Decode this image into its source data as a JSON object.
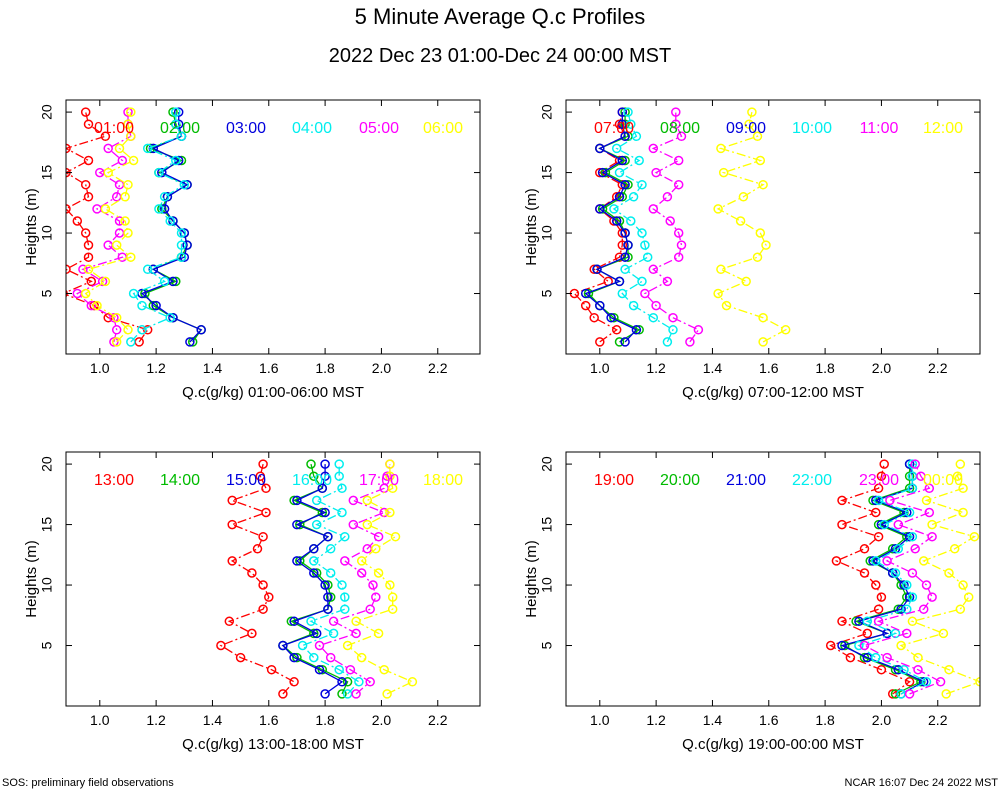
{
  "title": "5 Minute Average Q.c Profiles",
  "subtitle": "2022 Dec 23 01:00-Dec 24 00:00 MST",
  "footer": {
    "left": "SOS: preliminary field observations",
    "right": "NCAR 16:07 Dec 24 2022 MST"
  },
  "colors": {
    "red": "#ff0000",
    "green": "#00bb00",
    "blue": "#0000dd",
    "cyan": "#00eeee",
    "magenta": "#ff00ff",
    "yellow": "#ffff00",
    "darkblue": "#00008b"
  },
  "chart_data": [
    {
      "type": "line",
      "xlabel": "Q.c(g/kg) 01:00-06:00 MST",
      "ylabel": "Heights (m)",
      "xlim": [
        0.88,
        2.35
      ],
      "ylim": [
        0,
        21
      ],
      "xticks": [
        "1.0",
        "1.2",
        "1.4",
        "1.6",
        "1.8",
        "2.0",
        "2.2"
      ],
      "yticks": [
        "5",
        "10",
        "15",
        "20"
      ],
      "heights": [
        1,
        2,
        3,
        4,
        5,
        6,
        7,
        8,
        9,
        10,
        11,
        12,
        13,
        14,
        15,
        16,
        17,
        18,
        19,
        20
      ],
      "series": [
        {
          "name": "01:00",
          "color": "red",
          "values": [
            1.14,
            1.17,
            1.03,
            0.98,
            0.87,
            0.97,
            0.88,
            0.96,
            0.96,
            0.95,
            0.92,
            0.88,
            0.96,
            0.95,
            0.88,
            0.96,
            0.88,
            1.02,
            0.96,
            0.95
          ]
        },
        {
          "name": "02:00",
          "color": "green",
          "values": [
            1.33,
            1.36,
            1.26,
            1.19,
            1.16,
            1.27,
            1.19,
            1.29,
            1.31,
            1.3,
            1.26,
            1.22,
            1.24,
            1.31,
            1.21,
            1.29,
            1.18,
            1.29,
            1.27,
            1.26
          ]
        },
        {
          "name": "03:00",
          "color": "blue",
          "values": [
            1.32,
            1.36,
            1.26,
            1.2,
            1.15,
            1.26,
            1.19,
            1.3,
            1.31,
            1.3,
            1.26,
            1.23,
            1.24,
            1.31,
            1.22,
            1.28,
            1.19,
            1.29,
            1.28,
            1.28
          ]
        },
        {
          "name": "04:00",
          "color": "cyan",
          "values": [
            1.11,
            1.15,
            1.25,
            1.15,
            1.12,
            1.23,
            1.17,
            1.29,
            1.29,
            1.29,
            1.25,
            1.21,
            1.23,
            1.3,
            1.21,
            1.27,
            1.17,
            1.29,
            1.27,
            1.27
          ]
        },
        {
          "name": "05:00",
          "color": "magenta",
          "values": [
            1.05,
            1.06,
            1.05,
            0.97,
            0.92,
            1.01,
            0.94,
            1.08,
            1.03,
            1.07,
            1.07,
            0.99,
            1.06,
            1.07,
            1.0,
            1.08,
            1.03,
            1.11,
            1.1,
            1.1
          ]
        },
        {
          "name": "06:00",
          "color": "yellow",
          "values": [
            1.06,
            1.1,
            1.06,
            0.99,
            0.95,
            1.02,
            0.96,
            1.11,
            1.06,
            1.1,
            1.09,
            1.02,
            1.09,
            1.1,
            1.03,
            1.12,
            1.07,
            1.11,
            1.1,
            1.11
          ]
        }
      ]
    },
    {
      "type": "line",
      "xlabel": "Q.c(g/kg) 07:00-12:00 MST",
      "ylabel": "Heights (m)",
      "xlim": [
        0.88,
        2.35
      ],
      "ylim": [
        0,
        21
      ],
      "xticks": [
        "1.0",
        "1.2",
        "1.4",
        "1.6",
        "1.8",
        "2.0",
        "2.2"
      ],
      "yticks": [
        "5",
        "10",
        "15",
        "20"
      ],
      "heights": [
        1,
        2,
        3,
        4,
        5,
        6,
        7,
        8,
        9,
        10,
        11,
        12,
        13,
        14,
        15,
        16,
        17,
        18,
        19,
        20
      ],
      "series": [
        {
          "name": "07:00",
          "color": "red",
          "values": [
            1.0,
            1.06,
            0.98,
            0.95,
            0.91,
            1.03,
            0.98,
            1.07,
            1.08,
            1.08,
            1.05,
            1.0,
            1.06,
            1.08,
            1.0,
            1.07,
            1.0,
            1.09,
            1.07,
            1.08
          ]
        },
        {
          "name": "08:00",
          "color": "green",
          "values": [
            1.07,
            1.14,
            1.05,
            1.0,
            0.96,
            1.07,
            0.99,
            1.1,
            1.1,
            1.09,
            1.07,
            1.01,
            1.08,
            1.1,
            1.02,
            1.09,
            1.0,
            1.1,
            1.09,
            1.09
          ]
        },
        {
          "name": "09:00",
          "color": "blue",
          "values": [
            1.09,
            1.13,
            1.04,
            1.0,
            0.95,
            1.07,
            0.99,
            1.09,
            1.1,
            1.09,
            1.06,
            1.0,
            1.07,
            1.09,
            1.01,
            1.08,
            1.0,
            1.09,
            1.08,
            1.08
          ]
        },
        {
          "name": "10:00",
          "color": "cyan",
          "values": [
            1.24,
            1.26,
            1.19,
            1.12,
            1.08,
            1.15,
            1.09,
            1.17,
            1.16,
            1.15,
            1.11,
            1.05,
            1.12,
            1.15,
            1.07,
            1.14,
            1.06,
            1.13,
            1.11,
            1.1
          ]
        },
        {
          "name": "11:00",
          "color": "magenta",
          "values": [
            1.32,
            1.35,
            1.26,
            1.2,
            1.16,
            1.24,
            1.19,
            1.28,
            1.29,
            1.28,
            1.25,
            1.19,
            1.24,
            1.28,
            1.2,
            1.28,
            1.19,
            1.29,
            1.27,
            1.27
          ]
        },
        {
          "name": "12:00",
          "color": "yellow",
          "values": [
            1.58,
            1.66,
            1.58,
            1.45,
            1.42,
            1.52,
            1.43,
            1.56,
            1.59,
            1.57,
            1.5,
            1.42,
            1.51,
            1.58,
            1.44,
            1.57,
            1.43,
            1.56,
            1.53,
            1.54
          ]
        }
      ]
    },
    {
      "type": "line",
      "xlabel": "Q.c(g/kg) 13:00-18:00 MST",
      "ylabel": "Heights (m)",
      "xlim": [
        0.88,
        2.35
      ],
      "ylim": [
        0,
        21
      ],
      "xticks": [
        "1.0",
        "1.2",
        "1.4",
        "1.6",
        "1.8",
        "2.0",
        "2.2"
      ],
      "yticks": [
        "5",
        "10",
        "15",
        "20"
      ],
      "heights": [
        1,
        2,
        3,
        4,
        5,
        6,
        7,
        8,
        9,
        10,
        11,
        12,
        13,
        14,
        15,
        16,
        17,
        18,
        19,
        20
      ],
      "series": [
        {
          "name": "13:00",
          "color": "red",
          "values": [
            1.65,
            1.69,
            1.61,
            1.5,
            1.43,
            1.54,
            1.46,
            1.58,
            1.6,
            1.58,
            1.54,
            1.47,
            1.56,
            1.58,
            1.47,
            1.59,
            1.47,
            1.59,
            1.57,
            1.58
          ]
        },
        {
          "name": "14:00",
          "color": "green",
          "values": [
            1.86,
            1.88,
            1.79,
            1.7,
            1.65,
            1.76,
            1.68,
            1.81,
            1.82,
            1.81,
            1.77,
            1.71,
            1.76,
            1.81,
            1.71,
            1.79,
            1.69,
            1.79,
            1.76,
            1.75
          ]
        },
        {
          "name": "15:00",
          "color": "blue",
          "values": [
            1.8,
            1.86,
            1.78,
            1.69,
            1.65,
            1.77,
            1.69,
            1.81,
            1.81,
            1.8,
            1.76,
            1.7,
            1.76,
            1.81,
            1.7,
            1.8,
            1.7,
            1.79,
            1.8,
            1.8
          ]
        },
        {
          "name": "16:00",
          "color": "cyan",
          "values": [
            1.88,
            1.92,
            1.85,
            1.76,
            1.72,
            1.83,
            1.75,
            1.87,
            1.87,
            1.86,
            1.82,
            1.76,
            1.82,
            1.87,
            1.77,
            1.86,
            1.77,
            1.86,
            1.85,
            1.85
          ]
        },
        {
          "name": "17:00",
          "color": "magenta",
          "values": [
            1.91,
            1.96,
            1.89,
            1.82,
            1.78,
            1.91,
            1.83,
            1.96,
            1.98,
            1.97,
            1.93,
            1.87,
            1.95,
            1.99,
            1.9,
            2.01,
            1.9,
            2.01,
            2.02,
            2.03
          ]
        },
        {
          "name": "18:00",
          "color": "yellow",
          "values": [
            2.02,
            2.11,
            2.01,
            1.93,
            1.88,
            1.99,
            1.91,
            2.04,
            2.04,
            2.03,
            1.99,
            1.93,
            1.98,
            2.05,
            1.95,
            2.03,
            1.95,
            2.04,
            2.03,
            2.03
          ]
        }
      ]
    },
    {
      "type": "line",
      "xlabel": "Q.c(g/kg) 19:00-00:00 MST",
      "ylabel": "Heights (m)",
      "xlim": [
        0.88,
        2.35
      ],
      "ylim": [
        0,
        21
      ],
      "xticks": [
        "1.0",
        "1.2",
        "1.4",
        "1.6",
        "1.8",
        "2.0",
        "2.2"
      ],
      "yticks": [
        "5",
        "10",
        "15",
        "20"
      ],
      "heights": [
        1,
        2,
        3,
        4,
        5,
        6,
        7,
        8,
        9,
        10,
        11,
        12,
        13,
        14,
        15,
        16,
        17,
        18,
        19,
        20
      ],
      "series": [
        {
          "name": "19:00",
          "color": "red",
          "values": [
            2.04,
            2.1,
            2.0,
            1.89,
            1.82,
            1.95,
            1.86,
            1.99,
            2.0,
            1.98,
            1.94,
            1.84,
            1.94,
            1.99,
            1.86,
            1.98,
            1.86,
            1.99,
            2.0,
            2.01
          ]
        },
        {
          "name": "20:00",
          "color": "green",
          "values": [
            2.05,
            2.14,
            2.05,
            1.94,
            1.87,
            2.02,
            1.91,
            2.06,
            2.09,
            2.07,
            2.04,
            1.96,
            2.04,
            2.09,
            1.99,
            2.08,
            1.97,
            2.1,
            2.1,
            2.1
          ]
        },
        {
          "name": "21:00",
          "color": "blue",
          "values": [
            2.07,
            2.15,
            2.06,
            1.95,
            1.86,
            2.02,
            1.92,
            2.07,
            2.1,
            2.08,
            2.04,
            1.97,
            2.05,
            2.1,
            2.0,
            2.09,
            1.98,
            2.11,
            2.11,
            2.1
          ]
        },
        {
          "name": "22:00",
          "color": "cyan",
          "values": [
            2.07,
            2.16,
            2.08,
            1.98,
            1.92,
            2.05,
            1.95,
            2.09,
            2.11,
            2.09,
            2.05,
            1.98,
            2.06,
            2.11,
            2.01,
            2.1,
            1.99,
            2.11,
            2.11,
            2.11
          ]
        },
        {
          "name": "23:00",
          "color": "magenta",
          "values": [
            2.1,
            2.21,
            2.13,
            2.02,
            1.94,
            2.09,
            1.99,
            2.15,
            2.18,
            2.16,
            2.11,
            2.02,
            2.12,
            2.18,
            2.06,
            2.17,
            2.03,
            2.17,
            2.14,
            2.12
          ]
        },
        {
          "name": "00:00",
          "color": "yellow",
          "values": [
            2.23,
            2.35,
            2.24,
            2.13,
            2.07,
            2.22,
            2.11,
            2.28,
            2.31,
            2.29,
            2.24,
            2.15,
            2.26,
            2.33,
            2.18,
            2.29,
            2.16,
            2.29,
            2.27,
            2.28
          ]
        }
      ]
    }
  ]
}
